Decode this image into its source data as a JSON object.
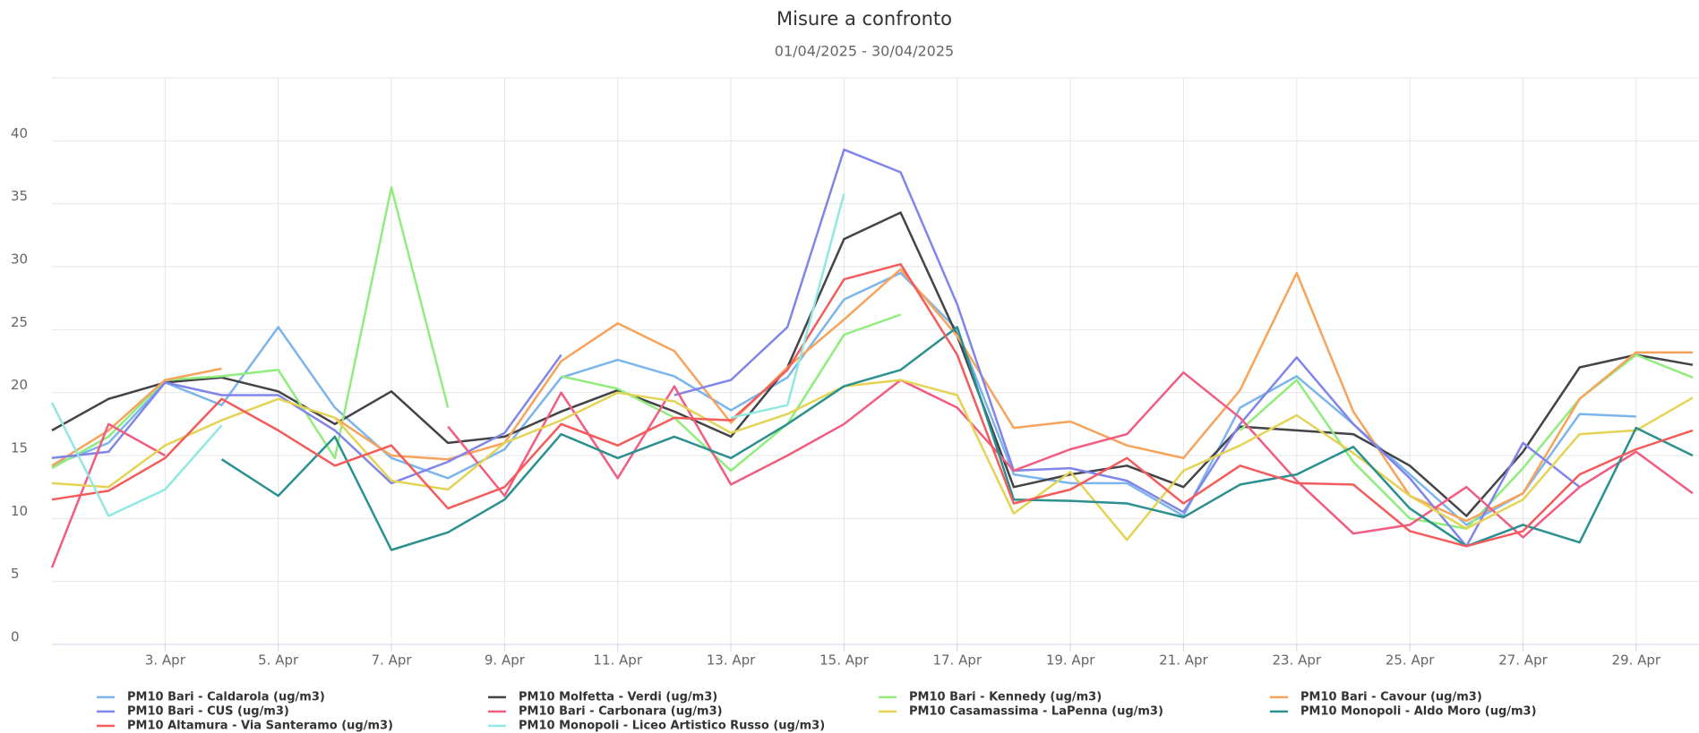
{
  "chart_data": {
    "type": "line",
    "title": "Misure a confronto",
    "subtitle": "01/04/2025 - 30/04/2025",
    "categories": [
      null,
      null,
      "3. Apr",
      null,
      "5. Apr",
      null,
      "7. Apr",
      null,
      "9. Apr",
      null,
      "11. Apr",
      null,
      "13. Apr",
      null,
      "15. Apr",
      null,
      "17. Apr",
      null,
      "19. Apr",
      null,
      "21. Apr",
      null,
      "23. Apr",
      null,
      "25. Apr",
      null,
      "27. Apr",
      null,
      "29. Apr",
      null
    ],
    "ylim": [
      0,
      45
    ],
    "yticks": [
      0,
      5,
      10,
      15,
      20,
      25,
      30,
      35,
      40
    ],
    "grid": true,
    "series": [
      {
        "name": "PM10 Bari - Caldarola (ug/m3)",
        "color": "#7cb5ec",
        "values": [
          14.2,
          16,
          20.8,
          19,
          25.2,
          18.8,
          14.8,
          13.2,
          15.5,
          21.2,
          22.6,
          21.3,
          18.6,
          21.2,
          27.4,
          29.5,
          25,
          13.5,
          12.8,
          12.8,
          10.2,
          18.8,
          21.3,
          17.5,
          13.5,
          9.5,
          12,
          18.3,
          18.1,
          null
        ]
      },
      {
        "name": "PM10 Molfetta - Verdi (ug/m3)",
        "color": "#434348",
        "values": [
          17,
          19.5,
          20.8,
          21.2,
          20.1,
          17.5,
          20.1,
          16,
          16.5,
          18.5,
          20.2,
          18.5,
          16.5,
          22,
          32.2,
          34.3,
          24.5,
          12.5,
          13.5,
          14.2,
          12.5,
          17.3,
          17,
          16.7,
          14.2,
          10.2,
          15.3,
          22,
          23,
          22.2
        ]
      },
      {
        "name": "PM10 Bari - Kennedy (ug/m3)",
        "color": "#90ed7d",
        "values": [
          14,
          16.5,
          21,
          21.3,
          21.8,
          14.8,
          36.3,
          18.8,
          null,
          21.3,
          20.3,
          18,
          13.8,
          17.5,
          24.6,
          26.2,
          null,
          null,
          null,
          null,
          null,
          17,
          21,
          14.5,
          10,
          9.2,
          14,
          19.5,
          23,
          21.2
        ]
      },
      {
        "name": "PM10 Bari - Cavour (ug/m3)",
        "color": "#f7a35c",
        "values": [
          14.2,
          17,
          21,
          21.9,
          null,
          18,
          15,
          14.7,
          16,
          22.5,
          25.5,
          23.3,
          17.6,
          22,
          25.8,
          29.8,
          24.5,
          17.2,
          17.7,
          15.8,
          14.8,
          20.2,
          29.5,
          18.5,
          11.8,
          9.8,
          12,
          19.5,
          23.2,
          23.2
        ]
      },
      {
        "name": "PM10 Bari - CUS (ug/m3)",
        "color": "#8085e9",
        "values": [
          14.8,
          15.3,
          20.8,
          19.8,
          19.8,
          17,
          12.8,
          14.5,
          16.8,
          23,
          null,
          19.8,
          21,
          25.2,
          39.3,
          37.5,
          27,
          13.8,
          14,
          13,
          10.5,
          17.5,
          22.8,
          17.5,
          13.2,
          7.8,
          16,
          12.5,
          null,
          null
        ]
      },
      {
        "name": "PM10 Bari - Carbonara (ug/m3)",
        "color": "#f15c80",
        "values": [
          6.1,
          17.5,
          15,
          null,
          null,
          null,
          null,
          17.3,
          11.8,
          20,
          13.2,
          20.5,
          12.7,
          15,
          17.5,
          21,
          18.8,
          13.8,
          15.5,
          16.7,
          21.6,
          18,
          13,
          8.8,
          9.5,
          12.5,
          8.5,
          12.5,
          15.3,
          12
        ]
      },
      {
        "name": "PM10 Casamassima - LaPenna (ug/m3)",
        "color": "#e4d354",
        "values": [
          12.8,
          12.5,
          15.8,
          17.8,
          19.5,
          18,
          13,
          12.3,
          16,
          17.8,
          20,
          19.3,
          16.8,
          18.3,
          20.5,
          21,
          19.8,
          10.4,
          13.7,
          8.3,
          13.8,
          15.8,
          18.2,
          15.2,
          11.8,
          9.2,
          11.5,
          16.7,
          17,
          19.6
        ]
      },
      {
        "name": "PM10 Monopoli - Aldo Moro (ug/m3)",
        "color": "#2b908f",
        "values": [
          null,
          null,
          null,
          14.7,
          11.8,
          16.5,
          7.5,
          8.9,
          11.5,
          16.7,
          14.8,
          16.5,
          14.8,
          17.5,
          20.5,
          21.8,
          25.2,
          11.5,
          11.4,
          11.2,
          10.1,
          12.7,
          13.5,
          15.7,
          10.8,
          7.8,
          9.5,
          8.1,
          17.2,
          15
        ]
      },
      {
        "name": "PM10 Altamura - Via Santeramo (ug/m3)",
        "color": "#f45b5b",
        "values": [
          11.5,
          12.2,
          14.8,
          19.5,
          17,
          14.2,
          15.8,
          10.8,
          12.5,
          17.5,
          15.8,
          18,
          17.8,
          21.8,
          29,
          30.2,
          23,
          11.2,
          12.3,
          14.8,
          11.2,
          14.2,
          12.8,
          12.7,
          9,
          7.8,
          9,
          13.5,
          15.5,
          17
        ]
      },
      {
        "name": "PM10 Monopoli - Liceo Artistico Russo (ug/m3)",
        "color": "#91e8e1",
        "values": [
          19.2,
          10.2,
          12.3,
          17.4,
          null,
          null,
          null,
          null,
          null,
          null,
          null,
          null,
          18,
          19,
          35.8,
          null,
          null,
          null,
          null,
          null,
          null,
          null,
          null,
          null,
          null,
          null,
          null,
          null,
          null,
          null
        ]
      }
    ]
  }
}
